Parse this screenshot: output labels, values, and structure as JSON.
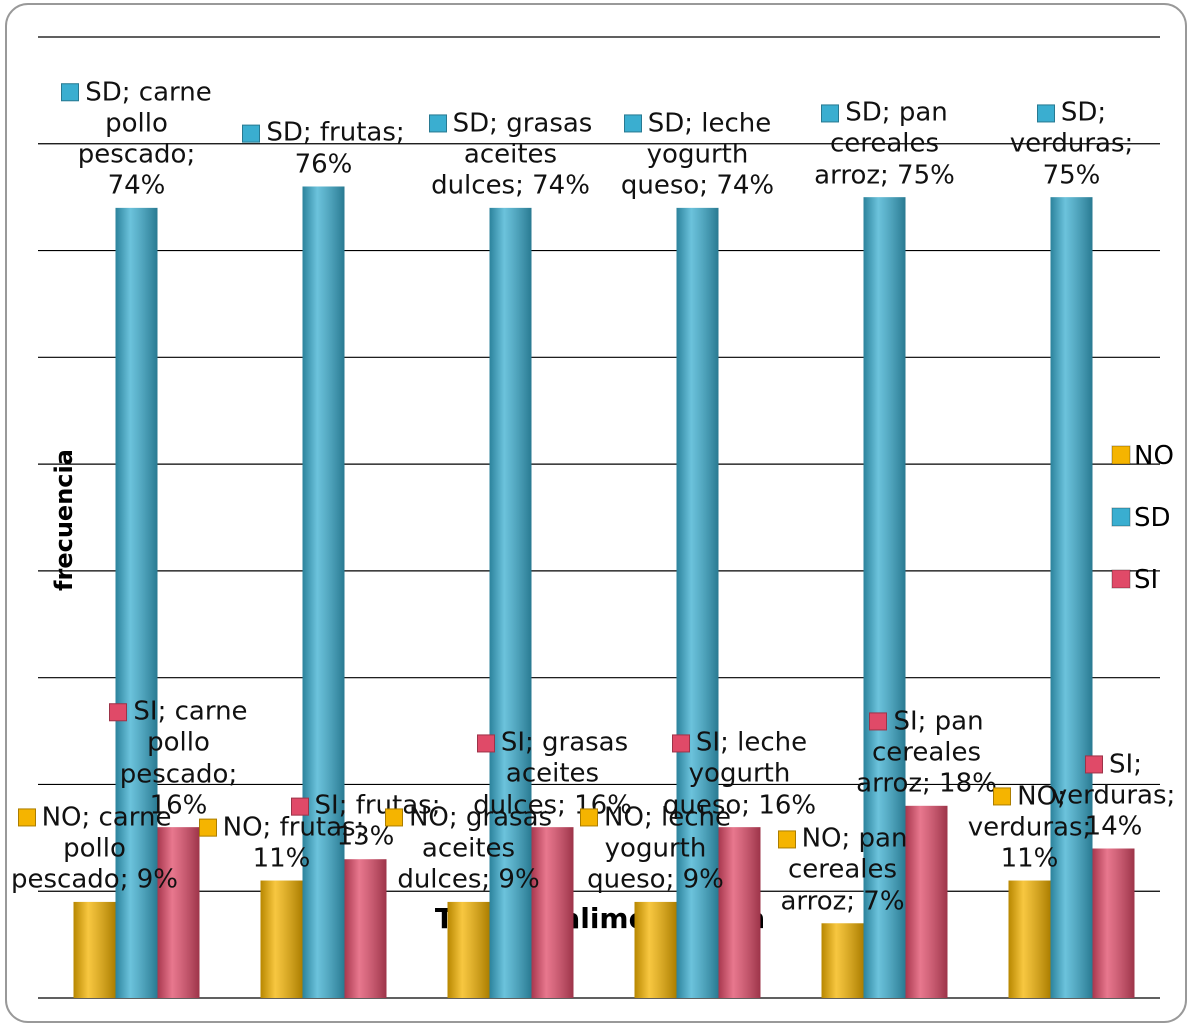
{
  "chart_data": {
    "type": "bar",
    "x_label": "Tipo de alimentacion",
    "y_label": "frecuencia",
    "categories": [
      "carne pollo pescado",
      "frutas",
      "grasas aceites dulces",
      "leche yogurth queso",
      "pan cereales arroz",
      "verduras"
    ],
    "series": [
      {
        "name": "NO",
        "color": "#f5b400",
        "values": [
          9,
          11,
          9,
          9,
          7,
          11
        ],
        "value_labels": [
          "NO; carne pollo pescado; 9%",
          "NO; frutas; 11%",
          "NO; grasas aceites dulces; 9%",
          "NO; leche yogurth queso; 9%",
          "NO; pan cereales arroz; 7%",
          "NO; verduras; 11%"
        ]
      },
      {
        "name": "SD",
        "color": "#3aaed0",
        "values": [
          74,
          76,
          74,
          74,
          75,
          75
        ],
        "value_labels": [
          "SD; carne pollo pescado; 74%",
          "SD; frutas; 76%",
          "SD; grasas aceites dulces; 74%",
          "SD; leche yogurth queso; 74%",
          "SD; pan cereales arroz; 75%",
          "SD; verduras; 75%"
        ]
      },
      {
        "name": "SI",
        "color": "#e04a68",
        "values": [
          16,
          13,
          16,
          16,
          18,
          14
        ],
        "value_labels": [
          "SI; carne pollo pescado; 16%",
          "SI; frutas; 13%",
          "SI; grasas aceites dulces; 16%",
          "SI; leche yogurth queso; 16%",
          "SI; pan cereales arroz; 18%",
          "SI; verduras; 14%"
        ]
      }
    ],
    "ylim": [
      0,
      90
    ],
    "yticks": [
      0,
      10,
      20,
      30,
      40,
      50,
      60,
      70,
      80,
      90
    ],
    "grid": true,
    "legend": "right"
  }
}
